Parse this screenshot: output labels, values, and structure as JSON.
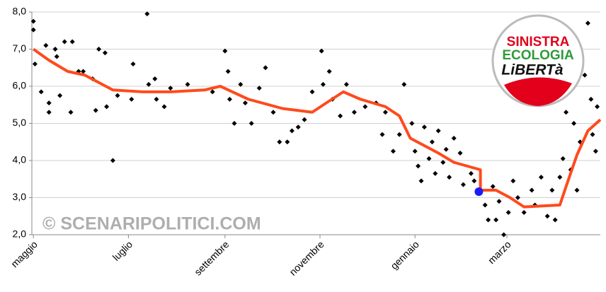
{
  "chart_data": {
    "type": "scatter",
    "xlim": [
      -1,
      364
    ],
    "ylim": [
      2,
      8
    ],
    "xticks": [
      {
        "value": 0,
        "label": "maggio"
      },
      {
        "value": 61,
        "label": "luglio"
      },
      {
        "value": 123,
        "label": "settembre"
      },
      {
        "value": 184,
        "label": "novembre"
      },
      {
        "value": 245,
        "label": "gennaio"
      },
      {
        "value": 304,
        "label": "marzo"
      }
    ],
    "yticks": [
      {
        "value": 2,
        "label": "2,0"
      },
      {
        "value": 3,
        "label": "3,0"
      },
      {
        "value": 4,
        "label": "4,0"
      },
      {
        "value": 5,
        "label": "5,0"
      },
      {
        "value": 6,
        "label": "6,0"
      },
      {
        "value": 7,
        "label": "7,0"
      },
      {
        "value": 8,
        "label": "8,0"
      }
    ],
    "grid": true,
    "points": {
      "color": "#000000",
      "x": [
        0,
        0,
        1,
        8,
        14,
        15,
        20,
        25,
        5,
        10,
        10,
        17,
        24,
        29,
        32,
        38,
        42,
        46,
        40,
        47,
        51,
        54,
        64,
        63,
        73,
        74,
        78,
        79,
        84,
        88,
        99,
        115,
        123,
        125,
        126,
        129,
        133,
        136,
        140,
        145,
        149,
        154,
        158,
        163,
        166,
        170,
        174,
        179,
        185,
        186,
        190,
        192,
        197,
        201,
        206,
        213,
        220,
        224,
        226,
        231,
        235,
        238,
        243,
        245,
        247,
        249,
        251,
        254,
        256,
        258,
        260,
        263,
        265,
        267,
        270,
        274,
        276,
        281,
        283,
        290,
        292,
        295,
        297,
        299,
        302,
        305,
        308,
        311,
        315,
        320,
        322,
        326,
        330,
        333,
        335,
        338,
        340,
        342,
        345,
        347,
        349,
        351,
        354,
        356,
        358,
        359,
        361,
        362
      ],
      "y": [
        7.75,
        7.52,
        6.6,
        7.1,
        7.0,
        6.8,
        7.2,
        7.2,
        5.85,
        5.3,
        5.55,
        5.75,
        5.3,
        6.4,
        6.4,
        6.2,
        7.0,
        6.9,
        5.35,
        5.45,
        4.0,
        5.75,
        6.6,
        5.65,
        7.95,
        6.05,
        6.2,
        5.65,
        5.45,
        5.95,
        6.05,
        5.85,
        6.95,
        6.4,
        5.65,
        5.0,
        6.05,
        5.55,
        5.0,
        5.95,
        6.5,
        5.3,
        4.5,
        4.5,
        4.8,
        4.9,
        5.1,
        5.85,
        6.95,
        6.05,
        6.4,
        5.65,
        5.2,
        6.05,
        5.3,
        5.45,
        5.55,
        4.7,
        5.3,
        4.25,
        4.7,
        6.05,
        5.0,
        4.25,
        3.85,
        3.45,
        4.9,
        4.05,
        4.5,
        3.65,
        4.8,
        3.95,
        4.3,
        3.55,
        4.6,
        4.2,
        3.35,
        3.65,
        3.45,
        2.8,
        2.4,
        3.3,
        2.4,
        2.9,
        2.0,
        2.6,
        3.45,
        3.0,
        2.6,
        3.2,
        2.8,
        3.55,
        2.5,
        3.2,
        2.4,
        3.55,
        4.05,
        5.3,
        3.75,
        5.0,
        3.2,
        4.5,
        6.3,
        7.7,
        5.65,
        4.7,
        4.25,
        5.45
      ]
    },
    "trend": {
      "color": "#ff4a1c",
      "x": [
        0,
        10,
        22,
        33,
        42,
        51,
        70,
        88,
        110,
        120,
        138,
        160,
        179,
        188,
        199,
        210,
        226,
        235,
        242,
        251,
        260,
        270,
        287,
        287,
        297,
        306,
        315,
        338,
        342,
        349,
        356,
        364
      ],
      "y": [
        7.0,
        6.7,
        6.4,
        6.3,
        6.1,
        5.9,
        5.85,
        5.85,
        5.9,
        6.0,
        5.65,
        5.4,
        5.3,
        5.55,
        5.85,
        5.65,
        5.45,
        5.2,
        4.6,
        4.4,
        4.2,
        3.95,
        3.75,
        3.2,
        3.2,
        3.0,
        2.75,
        2.8,
        3.3,
        4.15,
        4.8,
        5.1
      ]
    },
    "highlight": {
      "color": "#1a1aff",
      "x": 286,
      "y": 3.16
    },
    "watermark": "© SCENARIPOLITICI.COM",
    "logo": {
      "line1": "SINISTRA",
      "line2": "ECOLOGIA",
      "line3": "LiBERTà"
    }
  }
}
